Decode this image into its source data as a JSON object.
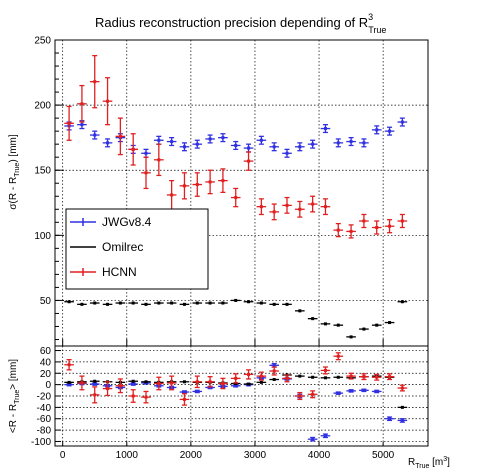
{
  "chart_data": [
    {
      "type": "scatter",
      "title": {
        "main": "Radius reconstruction precision depending of R",
        "sup": "3",
        "sub": "True"
      },
      "ylabel": {
        "pre": "σ(R - R",
        "sub": "True",
        "post": ") [mm]"
      },
      "xlim": [
        -120,
        5700
      ],
      "ylim": [
        15,
        250
      ],
      "yticks": [
        50,
        100,
        150,
        200,
        250
      ],
      "grid": true,
      "legend_position": "middle-left",
      "series": [
        {
          "name": "JWGv8.4",
          "color": "#3030e0",
          "x": [
            100,
            300,
            500,
            700,
            900,
            1100,
            1300,
            1500,
            1700,
            1900,
            2100,
            2300,
            2500,
            2700,
            2900,
            3100,
            3300,
            3500,
            3700,
            3900,
            4100,
            4300,
            4500,
            4700,
            4900,
            5100,
            5300
          ],
          "y": [
            184,
            185,
            177,
            171,
            175,
            166,
            163,
            173,
            172,
            168,
            170,
            174,
            175,
            169,
            167,
            173,
            168,
            163,
            168,
            170,
            182,
            171,
            172,
            171,
            181,
            180,
            187
          ],
          "err": [
            3,
            3,
            3,
            3,
            3,
            3,
            3,
            3,
            3,
            3,
            3,
            3,
            3,
            3,
            3,
            3,
            3,
            3,
            3,
            3,
            3,
            3,
            3,
            3,
            3,
            3,
            3
          ]
        },
        {
          "name": "Omilrec",
          "color": "#000000",
          "x": [
            100,
            300,
            500,
            700,
            900,
            1100,
            1300,
            1500,
            1700,
            1900,
            2100,
            2300,
            2500,
            2700,
            2900,
            3100,
            3300,
            3500,
            3700,
            3900,
            4100,
            4300,
            4500,
            4700,
            4900,
            5100,
            5300
          ],
          "y": [
            49,
            47,
            48,
            47,
            48,
            48,
            47,
            48,
            48,
            47,
            48,
            48,
            48,
            50,
            49,
            48,
            47,
            47,
            42,
            36,
            32,
            31,
            22,
            28,
            31,
            33,
            49
          ],
          "err": [
            1,
            1,
            1,
            1,
            1,
            1,
            1,
            1,
            1,
            1,
            1,
            1,
            1,
            1,
            1,
            1,
            1,
            1,
            1,
            1,
            1,
            1,
            1,
            1,
            1,
            1,
            1
          ]
        },
        {
          "name": "HCNN",
          "color": "#e02020",
          "x": [
            100,
            300,
            500,
            700,
            900,
            1100,
            1300,
            1500,
            1700,
            1900,
            2100,
            2300,
            2500,
            2700,
            2900,
            3100,
            3300,
            3500,
            3700,
            3900,
            4100,
            4300,
            4500,
            4700,
            4900,
            5100,
            5300
          ],
          "y": [
            186,
            201,
            218,
            203,
            176,
            166,
            148,
            158,
            131,
            138,
            139,
            141,
            142,
            129,
            157,
            122,
            118,
            123,
            120,
            124,
            122,
            104,
            103,
            111,
            106,
            107,
            111
          ],
          "err": [
            13,
            14,
            20,
            18,
            14,
            12,
            12,
            12,
            11,
            10,
            9,
            9,
            9,
            7,
            7,
            6,
            6,
            6,
            6,
            6,
            6,
            5,
            5,
            5,
            5,
            5,
            5
          ]
        }
      ]
    },
    {
      "type": "scatter",
      "xlabel": {
        "pre": "R",
        "sub": "True",
        "post": " [m",
        "sup": "3",
        "end": "]"
      },
      "ylabel": {
        "pre": "<R - R",
        "sub": "True",
        "post": "> [mm]"
      },
      "xlim": [
        -120,
        5700
      ],
      "xticks": [
        0,
        1000,
        2000,
        3000,
        4000,
        5000
      ],
      "ylim": [
        -108,
        68
      ],
      "yticks": [
        -100,
        -80,
        -60,
        -40,
        -20,
        0,
        20,
        40,
        60
      ],
      "grid": true,
      "series": [
        {
          "name": "JWGv8.4",
          "color": "#3030e0",
          "x": [
            100,
            300,
            500,
            700,
            900,
            1100,
            1300,
            1500,
            1700,
            1900,
            2100,
            2300,
            2500,
            2700,
            2900,
            3100,
            3300,
            3500,
            3700,
            3900,
            4100,
            4300,
            4500,
            4700,
            4900,
            5100,
            5300
          ],
          "y": [
            0,
            2,
            1,
            -2,
            -5,
            1,
            3,
            -2,
            -5,
            -13,
            -12,
            -5,
            -3,
            -2,
            0,
            12,
            34,
            10,
            -20,
            -96,
            -90,
            -15,
            -11,
            -10,
            -12,
            -60,
            -63
          ],
          "err": [
            2,
            2,
            2,
            2,
            2,
            2,
            2,
            2,
            2,
            2,
            2,
            2,
            2,
            2,
            2,
            2,
            3,
            2,
            3,
            3,
            3,
            2,
            2,
            2,
            2,
            3,
            3
          ]
        },
        {
          "name": "Omilrec",
          "color": "#000000",
          "x": [
            100,
            300,
            500,
            700,
            900,
            1100,
            1300,
            1500,
            1700,
            1900,
            2100,
            2300,
            2500,
            2700,
            2900,
            3100,
            3300,
            3500,
            3700,
            3900,
            4100,
            4300,
            4500,
            4700,
            4900,
            5100,
            5300
          ],
          "y": [
            4,
            5,
            6,
            5,
            4,
            6,
            5,
            4,
            5,
            5,
            4,
            4,
            3,
            2,
            1,
            4,
            9,
            17,
            15,
            13,
            12,
            13,
            12,
            14,
            15,
            13,
            -40
          ],
          "err": [
            1,
            1,
            1,
            1,
            1,
            1,
            1,
            1,
            1,
            1,
            1,
            1,
            1,
            1,
            1,
            1,
            1,
            1,
            1,
            1,
            1,
            1,
            1,
            1,
            1,
            1,
            1
          ]
        },
        {
          "name": "HCNN",
          "color": "#e02020",
          "x": [
            100,
            300,
            500,
            700,
            900,
            1100,
            1300,
            1500,
            1700,
            1900,
            2100,
            2300,
            2500,
            2700,
            2900,
            3100,
            3300,
            3500,
            3700,
            3900,
            4100,
            4300,
            4500,
            4700,
            4900,
            5100,
            5300
          ],
          "y": [
            35,
            3,
            -18,
            -7,
            -2,
            -20,
            -22,
            2,
            3,
            -26,
            5,
            5,
            2,
            11,
            18,
            15,
            24,
            11,
            -20,
            -17,
            25,
            50,
            15,
            14,
            13,
            14,
            -6
          ],
          "err": [
            9,
            12,
            14,
            12,
            12,
            11,
            10,
            11,
            12,
            10,
            10,
            9,
            9,
            8,
            8,
            7,
            7,
            6,
            6,
            6,
            6,
            6,
            5,
            5,
            5,
            5,
            5
          ]
        }
      ]
    }
  ]
}
